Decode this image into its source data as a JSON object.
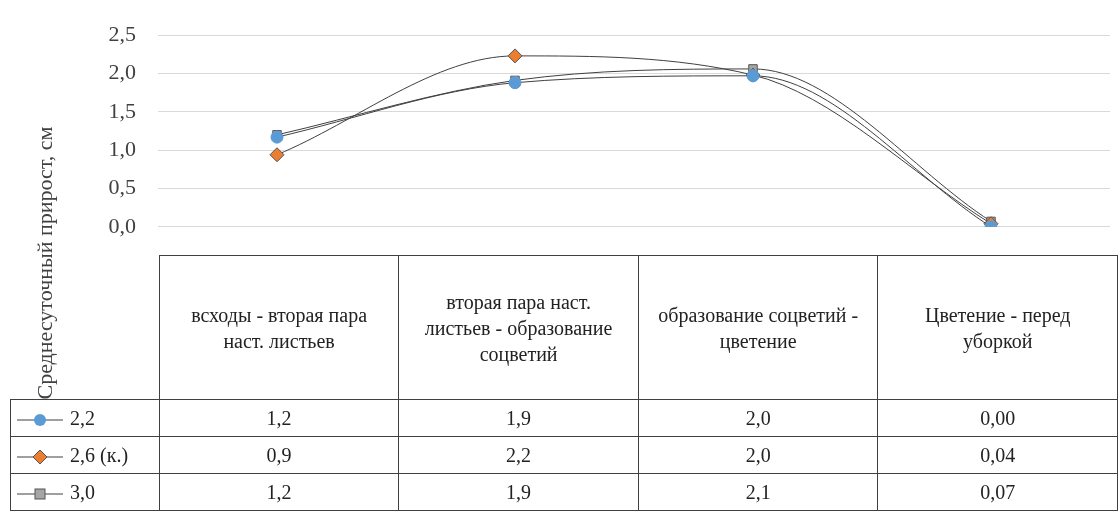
{
  "chart_data": {
    "type": "line",
    "ylabel": "Среднесуточный прирост, см",
    "categories": [
      "всходы - вторая пара наст. листьев",
      "вторая пара наст. листьев - образование соцветий",
      "образование соцветий - цветение",
      "Цветение - перед уборкой"
    ],
    "series": [
      {
        "name": "2,2",
        "color": "#5b9bd5",
        "marker": "circle",
        "values": [
          1.17,
          1.88,
          1.97,
          0.0
        ],
        "value_labels": [
          "1,2",
          "1,9",
          "2,0",
          "0,00"
        ]
      },
      {
        "name": "2,6 (к.)",
        "color": "#ed7d31",
        "marker": "diamond",
        "values": [
          0.94,
          2.23,
          1.98,
          0.04
        ],
        "value_labels": [
          "0,9",
          "2,2",
          "2,0",
          "0,04"
        ]
      },
      {
        "name": "3,0",
        "color": "#a5a5a5",
        "marker": "square",
        "values": [
          1.2,
          1.91,
          2.06,
          0.07
        ],
        "value_labels": [
          "1,2",
          "1,9",
          "2,1",
          "0,07"
        ]
      }
    ],
    "ylim": [
      0,
      2.5
    ],
    "yticks": [
      {
        "value": 0,
        "label": "0,0"
      },
      {
        "value": 0.5,
        "label": "0,5"
      },
      {
        "value": 1,
        "label": "1,0"
      },
      {
        "value": 1.5,
        "label": "1,5"
      },
      {
        "value": 2,
        "label": "2,0"
      },
      {
        "value": 2.5,
        "label": "2,5"
      }
    ],
    "grid": "y",
    "legend": "bottom"
  }
}
